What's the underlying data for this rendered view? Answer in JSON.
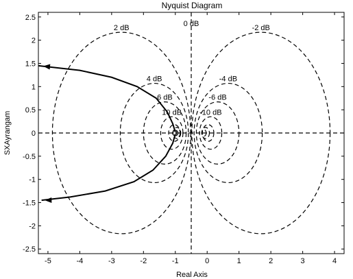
{
  "chart_data": {
    "type": "line",
    "title": "Nyquist Diagram",
    "xlabel": "Real Axis",
    "ylabel": "SXAyrangam",
    "xlim": [
      -5.3,
      4.3
    ],
    "ylim": [
      -2.6,
      2.6
    ],
    "xticks": [
      -5,
      -4,
      -3,
      -2,
      -1,
      0,
      1,
      2,
      3,
      4
    ],
    "yticks": [
      -2.5,
      -2,
      -1.5,
      -1,
      -0.5,
      0,
      0.5,
      1,
      1.5,
      2,
      2.5
    ],
    "xtick_labels": [
      "-5",
      "-4",
      "-3",
      "-2",
      "-1",
      "0",
      "1",
      "2",
      "3",
      "4"
    ],
    "ytick_labels": [
      "-2.5",
      "-2",
      "-1.5",
      "-1",
      "-0.5",
      "0",
      "0.5",
      "1",
      "1.5",
      "2",
      "2.5"
    ],
    "grid_lines": {
      "x": -0.5,
      "y": 0,
      "style": "dashed"
    },
    "m_circles": [
      {
        "label": "2 dB",
        "center": [
          -2.69,
          0
        ],
        "radius": 2.17
      },
      {
        "label": "-2 dB",
        "center": [
          1.69,
          0
        ],
        "radius": 2.17
      },
      {
        "label": "4 dB",
        "center": [
          -1.66,
          0
        ],
        "radius": 1.07
      },
      {
        "label": "-4 dB",
        "center": [
          0.66,
          0
        ],
        "radius": 1.07
      },
      {
        "label": "6 dB",
        "center": [
          -1.33,
          0
        ],
        "radius": 0.67
      },
      {
        "label": "-6 dB",
        "center": [
          0.33,
          0
        ],
        "radius": 0.67
      },
      {
        "label": "10 dB",
        "center": [
          -1.11,
          0
        ],
        "radius": 0.35
      },
      {
        "label": "-10 dB",
        "center": [
          0.11,
          0
        ],
        "radius": 0.35
      },
      {
        "label": "",
        "center": [
          -1.03,
          0
        ],
        "radius": 0.18
      },
      {
        "label": "",
        "center": [
          0.03,
          0
        ],
        "radius": 0.18
      },
      {
        "label": "",
        "center": [
          -0.95,
          0
        ],
        "radius": 0.12
      },
      {
        "label": "",
        "center": [
          -0.05,
          0
        ],
        "radius": 0.12
      },
      {
        "label": "",
        "center": [
          -0.9,
          0
        ],
        "radius": 0.07
      },
      {
        "label": "",
        "center": [
          -0.1,
          0
        ],
        "radius": 0.07
      }
    ],
    "series": [
      {
        "x": [
          -5.3,
          -4.0,
          -3.0,
          -2.2,
          -1.6,
          -1.25,
          -1.08,
          -1.0
        ],
        "y": [
          1.45,
          1.35,
          1.2,
          1.0,
          0.75,
          0.45,
          0.2,
          0.02
        ]
      },
      {
        "x": [
          -1.0,
          -1.08,
          -1.3,
          -1.7,
          -2.3,
          -3.2,
          -4.3,
          -5.2
        ],
        "y": [
          -0.02,
          -0.22,
          -0.5,
          -0.8,
          -1.05,
          -1.25,
          -1.38,
          -1.45
        ]
      }
    ],
    "critical_point": {
      "x": -1,
      "y": 0
    }
  }
}
